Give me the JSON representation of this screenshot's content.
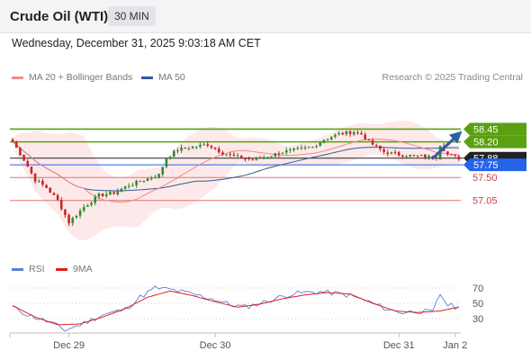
{
  "header": {
    "title": "Crude Oil (WTI)",
    "timeframe": "30 MIN"
  },
  "timestamp": "Wednesday, December 31, 2025 9:03:18 AM CET",
  "legend": {
    "ma20": "MA 20 + Bollinger Bands",
    "ma50": "MA 50",
    "ma20_color": "#f08a8a",
    "ma50_color": "#2e5a9a"
  },
  "credit": "Research © 2025 Trading Central",
  "rsi_legend": {
    "rsi": "RSI",
    "ma9": "9MA",
    "rsi_color": "#5b7fd6",
    "ma9_color": "#e02020"
  },
  "chart_data": [
    {
      "type": "candlestick",
      "ylim": [
        56.25,
        58.9
      ],
      "x_ticks": [
        "Dec 29",
        "Dec 30",
        "Dec 31",
        "Jan 2"
      ],
      "levels": [
        {
          "value": 58.45,
          "label": "58.45",
          "kind": "resistance",
          "color": "#5aa012"
        },
        {
          "value": 58.2,
          "label": "58.20",
          "kind": "resistance",
          "color": "#5aa012"
        },
        {
          "value": 57.88,
          "label": "57.88",
          "kind": "current",
          "color": "#222222"
        },
        {
          "value": 57.75,
          "label": "57.75",
          "kind": "pivot",
          "color": "#2563eb"
        },
        {
          "value": 57.5,
          "label": "57.50",
          "kind": "support",
          "color": "#e07070"
        },
        {
          "value": 57.05,
          "label": "57.05",
          "kind": "support",
          "color": "#e07070"
        }
      ],
      "close_anchors": [
        [
          0,
          58.2
        ],
        [
          3,
          57.85
        ],
        [
          6,
          57.45
        ],
        [
          9,
          57.3
        ],
        [
          12,
          57.05
        ],
        [
          15,
          56.62
        ],
        [
          19,
          56.92
        ],
        [
          23,
          57.15
        ],
        [
          27,
          57.2
        ],
        [
          31,
          57.35
        ],
        [
          35,
          57.45
        ],
        [
          39,
          57.55
        ],
        [
          41,
          57.88
        ],
        [
          44,
          58.05
        ],
        [
          48,
          58.1
        ],
        [
          52,
          58.15
        ],
        [
          56,
          57.98
        ],
        [
          60,
          57.9
        ],
        [
          64,
          57.85
        ],
        [
          68,
          57.92
        ],
        [
          72,
          58.0
        ],
        [
          76,
          58.05
        ],
        [
          80,
          58.1
        ],
        [
          83,
          58.25
        ],
        [
          87,
          58.35
        ],
        [
          91,
          58.4
        ],
        [
          93,
          58.35
        ],
        [
          95,
          58.2
        ],
        [
          99,
          58.0
        ],
        [
          103,
          57.95
        ],
        [
          108,
          57.92
        ],
        [
          113,
          57.9
        ],
        [
          114,
          58.15
        ],
        [
          116,
          57.95
        ],
        [
          119,
          57.88
        ]
      ],
      "arrow": {
        "direction": "up",
        "color": "#2c5fa8"
      }
    },
    {
      "type": "line",
      "title": "RSI",
      "ylim": [
        10,
        80
      ],
      "y_ticks": [
        70,
        50,
        30
      ],
      "series": [
        {
          "name": "RSI",
          "anchors": [
            [
              0,
              45
            ],
            [
              4,
              35
            ],
            [
              10,
              25
            ],
            [
              14,
              15
            ],
            [
              18,
              22
            ],
            [
              24,
              35
            ],
            [
              30,
              42
            ],
            [
              34,
              58
            ],
            [
              38,
              70
            ],
            [
              42,
              68
            ],
            [
              48,
              62
            ],
            [
              54,
              55
            ],
            [
              58,
              48
            ],
            [
              62,
              45
            ],
            [
              66,
              50
            ],
            [
              70,
              56
            ],
            [
              74,
              62
            ],
            [
              78,
              64
            ],
            [
              82,
              65
            ],
            [
              86,
              63
            ],
            [
              90,
              60
            ],
            [
              95,
              52
            ],
            [
              100,
              42
            ],
            [
              104,
              38
            ],
            [
              108,
              40
            ],
            [
              112,
              38
            ],
            [
              114,
              62
            ],
            [
              116,
              48
            ],
            [
              119,
              44
            ]
          ]
        },
        {
          "name": "9MA",
          "anchors": [
            [
              0,
              47
            ],
            [
              6,
              32
            ],
            [
              12,
              22
            ],
            [
              18,
              23
            ],
            [
              24,
              32
            ],
            [
              30,
              43
            ],
            [
              36,
              58
            ],
            [
              42,
              66
            ],
            [
              48,
              60
            ],
            [
              54,
              52
            ],
            [
              60,
              45
            ],
            [
              66,
              49
            ],
            [
              72,
              56
            ],
            [
              78,
              61
            ],
            [
              84,
              64
            ],
            [
              90,
              62
            ],
            [
              96,
              50
            ],
            [
              102,
              40
            ],
            [
              108,
              38
            ],
            [
              114,
              40
            ],
            [
              119,
              45
            ]
          ]
        }
      ]
    }
  ]
}
